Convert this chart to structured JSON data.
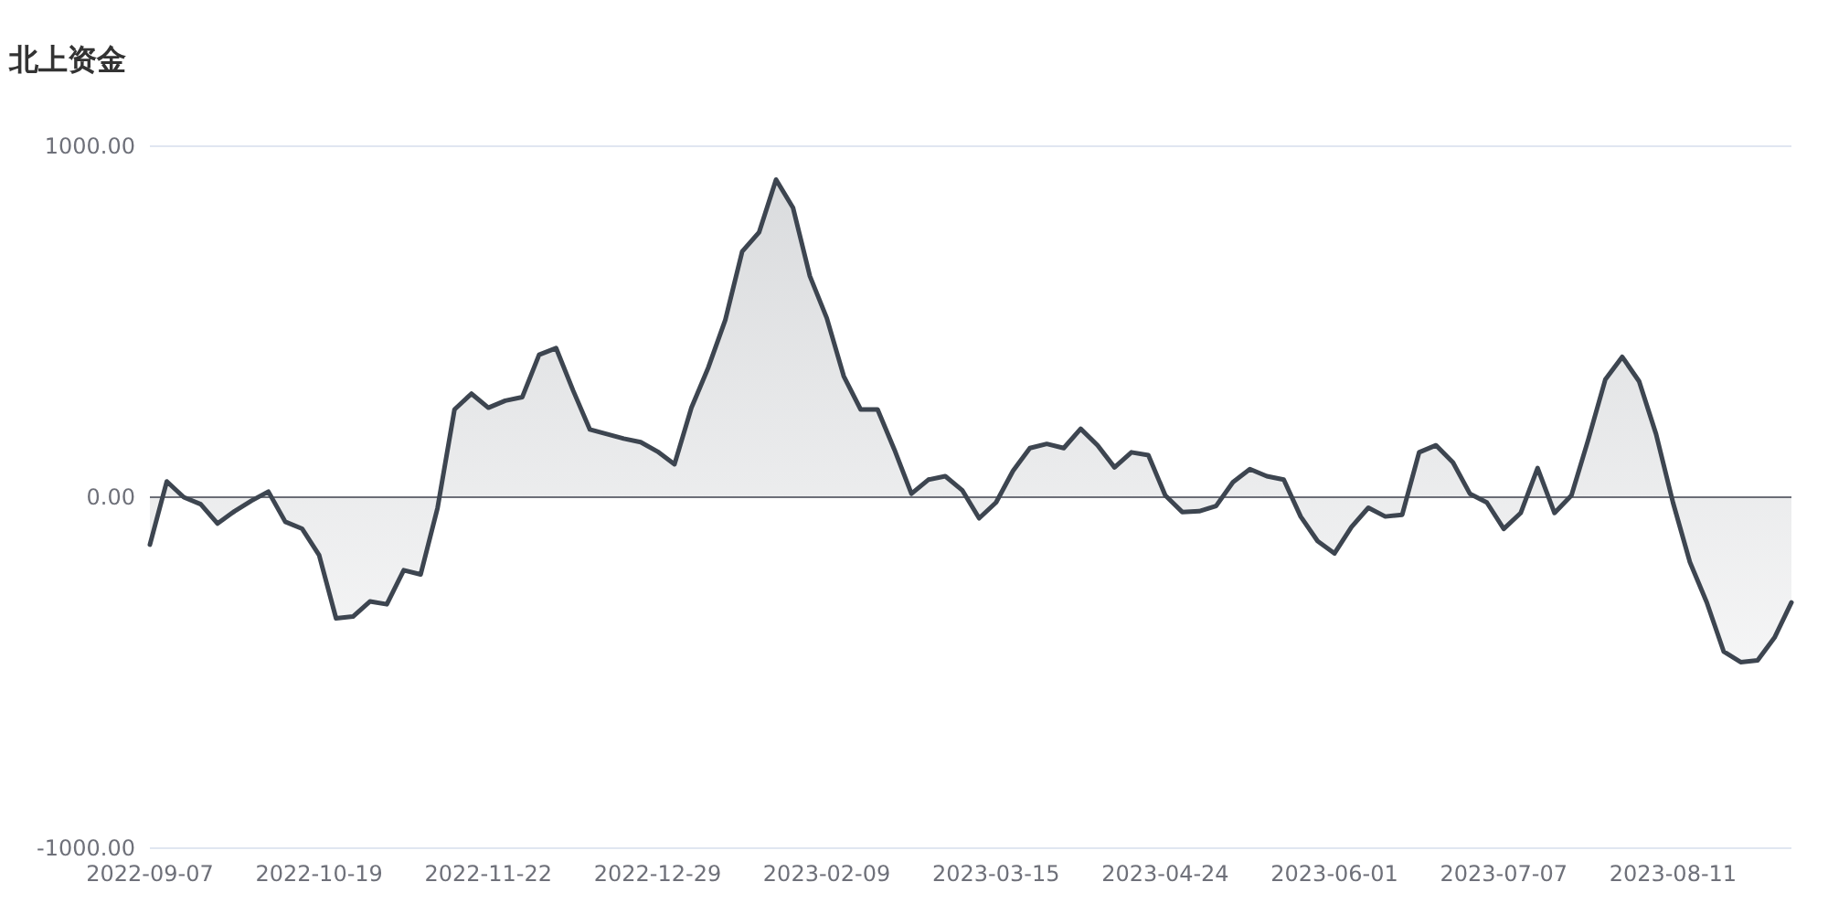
{
  "chart_data": {
    "type": "area",
    "title": "北上资金",
    "categories": [
      "2022-09-07",
      null,
      null,
      null,
      null,
      null,
      null,
      null,
      null,
      null,
      "2022-10-19",
      null,
      null,
      null,
      null,
      null,
      null,
      null,
      null,
      null,
      "2022-11-22",
      null,
      null,
      null,
      null,
      null,
      null,
      null,
      null,
      null,
      "2022-12-29",
      null,
      null,
      null,
      null,
      null,
      null,
      null,
      null,
      null,
      "2023-02-09",
      null,
      null,
      null,
      null,
      null,
      null,
      null,
      null,
      null,
      "2023-03-15",
      null,
      null,
      null,
      null,
      null,
      null,
      null,
      null,
      null,
      "2023-04-24",
      null,
      null,
      null,
      null,
      null,
      null,
      null,
      null,
      null,
      "2023-06-01",
      null,
      null,
      null,
      null,
      null,
      null,
      null,
      null,
      null,
      "2023-07-07",
      null,
      null,
      null,
      null,
      null,
      null,
      null,
      null,
      null,
      "2023-08-11",
      null,
      null,
      null,
      null,
      null,
      null,
      null
    ],
    "series": [
      {
        "color": "#3d4550",
        "values": [
          -135,
          45,
          0,
          -20,
          -75,
          -40,
          -10,
          16,
          -70,
          -90,
          -165,
          -345,
          -340,
          -297,
          -305,
          -208,
          -220,
          -30,
          250,
          295,
          255,
          275,
          285,
          406,
          425,
          305,
          193,
          180,
          167,
          157,
          130,
          94,
          255,
          370,
          505,
          700,
          755,
          905,
          825,
          630,
          510,
          345,
          250,
          250,
          135,
          10,
          50,
          60,
          20,
          -60,
          -15,
          75,
          140,
          152,
          140,
          195,
          148,
          85,
          128,
          120,
          5,
          -42,
          -40,
          -25,
          43,
          80,
          60,
          50,
          -55,
          -125,
          -160,
          -85,
          -30,
          -55,
          -50,
          128,
          148,
          99,
          10,
          -15,
          -90,
          -45,
          83,
          -45,
          5,
          165,
          335,
          400,
          330,
          180,
          -15,
          -185,
          -300,
          -440,
          -470,
          -465,
          -400,
          -300
        ]
      }
    ],
    "ylim": [
      -1000,
      1000
    ],
    "yticks": [
      {
        "value": -1000,
        "label": "-1000.00"
      },
      {
        "value": 0,
        "label": "0.00"
      },
      {
        "value": 1000,
        "label": "1000.00"
      }
    ],
    "grid": "y"
  }
}
